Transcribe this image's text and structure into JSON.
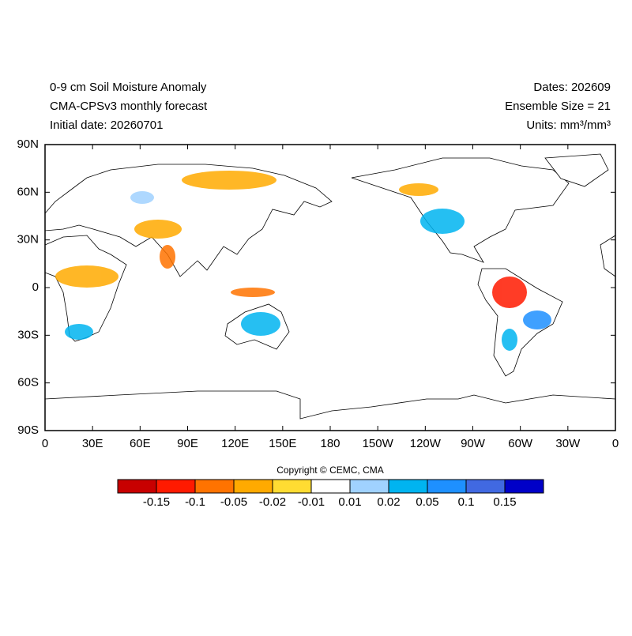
{
  "header": {
    "title_lines": [
      "0-9 cm Soil Moisture Anomaly",
      "CMA-CPSv3 monthly forecast",
      "Initial date: 20260701"
    ],
    "info_lines": [
      "Dates: 202609",
      "Ensemble Size = 21",
      "Units: mm³/mm³"
    ]
  },
  "map": {
    "lat_ticks": [
      {
        "value": 90,
        "label": "90N"
      },
      {
        "value": 60,
        "label": "60N"
      },
      {
        "value": 30,
        "label": "30N"
      },
      0,
      {
        "value": -30,
        "label": "30S"
      },
      {
        "value": -60,
        "label": "60S"
      },
      {
        "value": -90,
        "label": "90S"
      }
    ],
    "lon_ticks": [
      0,
      {
        "value": 30,
        "label": "30E"
      },
      {
        "value": 60,
        "label": "60E"
      },
      {
        "value": 90,
        "label": "90E"
      },
      {
        "value": 120,
        "label": "120E"
      },
      {
        "value": 150,
        "label": "150E"
      },
      180,
      {
        "value": 210,
        "label": "150W"
      },
      {
        "value": 240,
        "label": "120W"
      },
      {
        "value": 270,
        "label": "90W"
      },
      {
        "value": 300,
        "label": "60W"
      },
      {
        "value": 330,
        "label": "30W"
      },
      {
        "value": 360,
        "label": "0"
      }
    ],
    "latlim": [
      -90,
      90
    ],
    "lonlim": [
      0,
      360
    ]
  },
  "copyright": "Copyright © CEMC, CMA",
  "colorbar": {
    "levels": [
      -0.15,
      -0.1,
      -0.05,
      -0.02,
      -0.01,
      0.01,
      0.02,
      0.05,
      0.1,
      0.15
    ],
    "colors": [
      "#c80000",
      "#ff1a00",
      "#ff7300",
      "#ffaa00",
      "#ffdc32",
      "#ffffff",
      "#a0d2ff",
      "#00b4f0",
      "#1e90ff",
      "#4169e1",
      "#0000c8"
    ]
  }
}
